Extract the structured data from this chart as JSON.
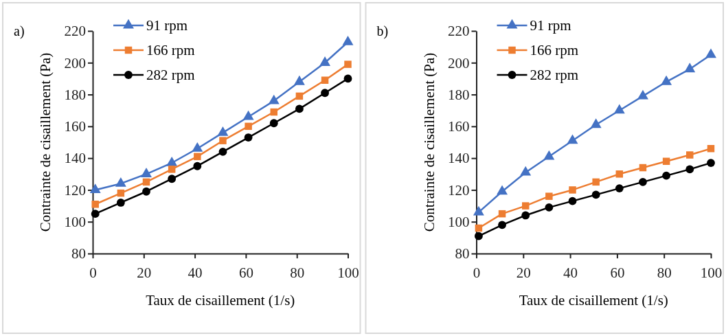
{
  "chart_data": [
    {
      "type": "line",
      "annotations": [
        "a)"
      ],
      "xlabel": "Taux de cisaillement (1/s)",
      "ylabel": "Contrainte de cisaillement  (Pa)",
      "x": [
        1,
        11,
        21,
        31,
        41,
        51,
        61,
        71,
        81,
        91,
        100
      ],
      "xlim": [
        0,
        100
      ],
      "xticks": [
        0,
        20,
        40,
        60,
        80,
        100
      ],
      "ylim": [
        80,
        220
      ],
      "yticks": [
        80,
        100,
        120,
        140,
        160,
        180,
        200,
        220
      ],
      "legend": "top left",
      "line_style": "solid",
      "series": [
        {
          "name": "91 rpm",
          "color": "#4472c4",
          "marker": "triangle",
          "values": [
            120,
            124,
            130,
            137,
            146,
            156,
            166,
            176,
            188,
            200,
            213
          ]
        },
        {
          "name": "166 rpm",
          "color": "#ed7d31",
          "marker": "square",
          "values": [
            111,
            118,
            125,
            133,
            141,
            151,
            160,
            169,
            179,
            189,
            199
          ]
        },
        {
          "name": "282 rpm",
          "color": "#000000",
          "marker": "circle",
          "values": [
            105,
            112,
            119,
            127,
            135,
            144,
            153,
            162,
            171,
            181,
            190
          ]
        }
      ]
    },
    {
      "type": "line",
      "annotations": [
        "b)"
      ],
      "xlabel": "Taux de cisaillement (1/s)",
      "ylabel": "Contrainte de cisaillement  (Pa)",
      "x": [
        1,
        11,
        21,
        31,
        41,
        51,
        61,
        71,
        81,
        91,
        100
      ],
      "xlim": [
        0,
        100
      ],
      "xticks": [
        0,
        20,
        40,
        60,
        80,
        100
      ],
      "ylim": [
        80,
        220
      ],
      "yticks": [
        80,
        100,
        120,
        140,
        160,
        180,
        200,
        220
      ],
      "legend": "top left",
      "line_style": "solid",
      "series": [
        {
          "name": "91 rpm",
          "color": "#4472c4",
          "marker": "triangle",
          "values": [
            106,
            119,
            131,
            141,
            151,
            161,
            170,
            179,
            188,
            196,
            205
          ]
        },
        {
          "name": "166 rpm",
          "color": "#ed7d31",
          "marker": "square",
          "values": [
            96,
            105,
            110,
            116,
            120,
            125,
            130,
            134,
            138,
            142,
            146
          ]
        },
        {
          "name": "282 rpm",
          "color": "#000000",
          "marker": "circle",
          "values": [
            91,
            98,
            104,
            109,
            113,
            117,
            121,
            125,
            129,
            133,
            137
          ]
        }
      ]
    }
  ]
}
